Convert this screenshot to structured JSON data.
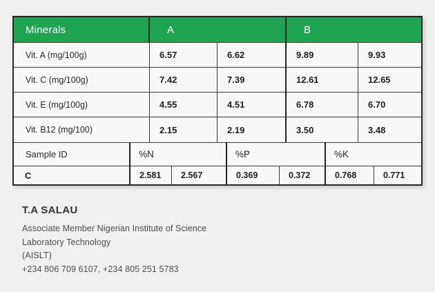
{
  "colors": {
    "header_green": "#1fa552",
    "page_background": "#f0f0ee",
    "cell_background": "#f8f8f6",
    "border": "#3a3a3a"
  },
  "table": {
    "header": {
      "minerals": "Minerals",
      "group_a": "A",
      "group_b": "B"
    },
    "vitamin_rows": [
      {
        "label": "Vit. A (mg/100g)",
        "values": [
          "6.57",
          "6.62",
          "9.89",
          "9.93"
        ]
      },
      {
        "label": "Vit. C (mg/100g)",
        "values": [
          "7.42",
          "7.39",
          "12.61",
          "12.65"
        ]
      },
      {
        "label": "Vit. E  (mg/100g)",
        "values": [
          "4.55",
          "4.51",
          "6.78",
          "6.70"
        ]
      },
      {
        "label": "Vit. B12 (mg/100)",
        "values": [
          "2.15",
          "2.19",
          "3.50",
          "3.48"
        ]
      }
    ],
    "sample_header": {
      "label": "Sample ID",
      "n": "%N",
      "p": "%P",
      "k": "%K"
    },
    "sample_row": {
      "label": "C",
      "values": [
        "2.581",
        "2.567",
        "0.369",
        "0.372",
        "0.768",
        "0.771"
      ]
    }
  },
  "footer": {
    "name": "T.A SALAU",
    "line1": "Associate Member Nigerian Institute of Science",
    "line2": "Laboratory Technology",
    "line3": "(AISLT)",
    "phone": "+234 806 709 6107, +234 805 251 5783"
  }
}
